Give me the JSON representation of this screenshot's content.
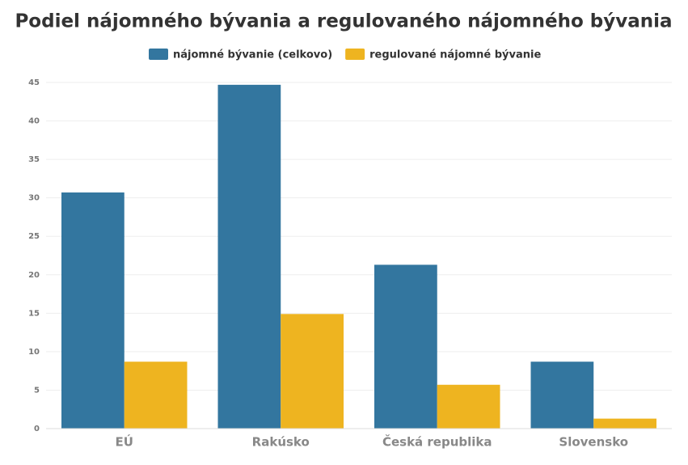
{
  "chart_data": {
    "type": "bar",
    "title": "Podiel nájomného bývania a regulovaného nájomného bývania",
    "categories": [
      "EÚ",
      "Rakúsko",
      "Česká republika",
      "Slovensko"
    ],
    "series": [
      {
        "name": "nájomné bývanie (celkovo)",
        "color": "#33769f",
        "values": [
          30.7,
          44.7,
          21.3,
          8.7
        ]
      },
      {
        "name": "regulované nájomné bývanie",
        "color": "#eeb420",
        "values": [
          8.7,
          14.9,
          5.7,
          1.3
        ]
      }
    ],
    "ylim": [
      0,
      45
    ],
    "yticks": [
      0,
      5,
      10,
      15,
      20,
      25,
      30,
      35,
      40,
      45
    ],
    "grid": true
  }
}
